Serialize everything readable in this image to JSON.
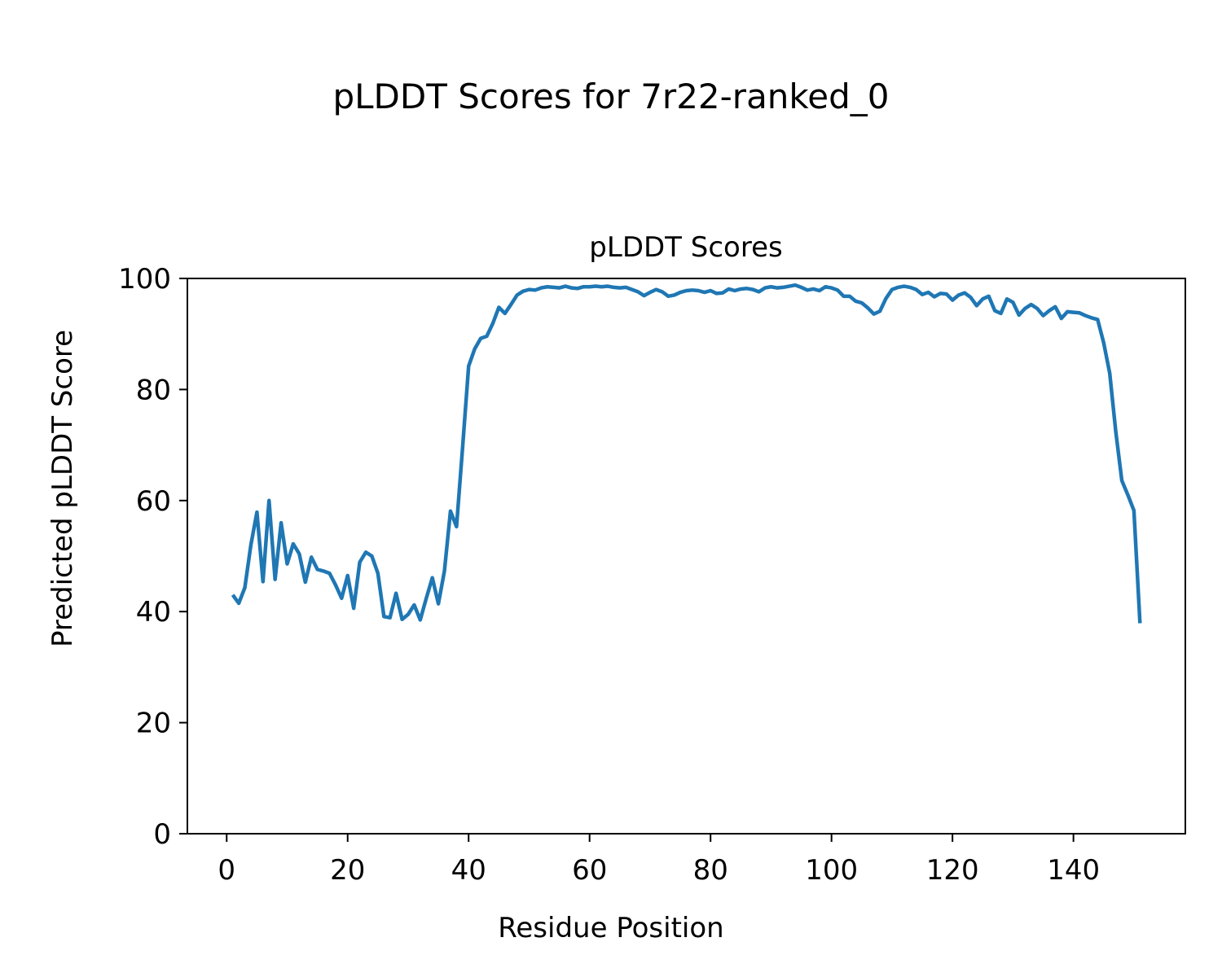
{
  "figure_title": "pLDDT Scores for 7r22-ranked_0",
  "chart_data": {
    "type": "line",
    "title": "pLDDT Scores",
    "xlabel": "Residue Position",
    "ylabel": "Predicted pLDDT Score",
    "xlim": [
      -6.5,
      158.5
    ],
    "ylim": [
      0,
      100
    ],
    "xticks": [
      0,
      20,
      40,
      60,
      80,
      100,
      120,
      140
    ],
    "yticks": [
      0,
      20,
      40,
      60,
      80,
      100
    ],
    "grid": false,
    "legend": "none",
    "series_color": "#1f77b4",
    "x": [
      1,
      2,
      3,
      4,
      5,
      6,
      7,
      8,
      9,
      10,
      11,
      12,
      13,
      14,
      15,
      16,
      17,
      18,
      19,
      20,
      21,
      22,
      23,
      24,
      25,
      26,
      27,
      28,
      29,
      30,
      31,
      32,
      33,
      34,
      35,
      36,
      37,
      38,
      39,
      40,
      41,
      42,
      43,
      44,
      45,
      46,
      47,
      48,
      49,
      50,
      51,
      52,
      53,
      54,
      55,
      56,
      57,
      58,
      59,
      60,
      61,
      62,
      63,
      64,
      65,
      66,
      67,
      68,
      69,
      70,
      71,
      72,
      73,
      74,
      75,
      76,
      77,
      78,
      79,
      80,
      81,
      82,
      83,
      84,
      85,
      86,
      87,
      88,
      89,
      90,
      91,
      92,
      93,
      94,
      95,
      96,
      97,
      98,
      99,
      100,
      101,
      102,
      103,
      104,
      105,
      106,
      107,
      108,
      109,
      110,
      111,
      112,
      113,
      114,
      115,
      116,
      117,
      118,
      119,
      120,
      121,
      122,
      123,
      124,
      125,
      126,
      127,
      128,
      129,
      130,
      131,
      132,
      133,
      134,
      135,
      136,
      137,
      138,
      139,
      140,
      141,
      142,
      143,
      144,
      145,
      146,
      147,
      148,
      149,
      150,
      151
    ],
    "values": [
      43.0,
      41.5,
      44.3,
      52.0,
      57.9,
      45.4,
      60.0,
      45.8,
      56.0,
      48.6,
      52.2,
      50.4,
      45.3,
      49.8,
      47.6,
      47.3,
      46.9,
      44.8,
      42.4,
      46.5,
      40.6,
      48.9,
      50.7,
      50.0,
      46.9,
      39.1,
      38.9,
      43.3,
      38.6,
      39.5,
      41.2,
      38.5,
      42.4,
      46.1,
      41.4,
      47.3,
      58.1,
      55.3,
      69.5,
      84.2,
      87.3,
      89.2,
      89.6,
      91.9,
      94.8,
      93.7,
      95.3,
      97.0,
      97.7,
      98.0,
      97.9,
      98.3,
      98.5,
      98.4,
      98.3,
      98.6,
      98.3,
      98.2,
      98.5,
      98.5,
      98.6,
      98.5,
      98.6,
      98.4,
      98.3,
      98.4,
      98.0,
      97.6,
      96.9,
      97.5,
      98.0,
      97.6,
      96.8,
      97.0,
      97.5,
      97.8,
      97.9,
      97.8,
      97.5,
      97.8,
      97.3,
      97.4,
      98.1,
      97.8,
      98.1,
      98.2,
      98.0,
      97.6,
      98.3,
      98.5,
      98.3,
      98.4,
      98.6,
      98.8,
      98.4,
      97.9,
      98.1,
      97.8,
      98.5,
      98.3,
      97.9,
      96.8,
      96.8,
      95.9,
      95.6,
      94.7,
      93.6,
      94.1,
      96.4,
      98.0,
      98.4,
      98.6,
      98.4,
      98.0,
      97.1,
      97.5,
      96.7,
      97.3,
      97.2,
      96.1,
      97.0,
      97.4,
      96.6,
      95.1,
      96.3,
      96.8,
      94.2,
      93.7,
      96.3,
      95.7,
      93.4,
      94.6,
      95.3,
      94.6,
      93.3,
      94.2,
      94.9,
      92.8,
      94.0,
      93.9,
      93.8,
      93.3,
      92.9,
      92.6,
      88.4,
      82.9,
      72.4,
      63.6,
      61.0,
      58.2,
      37.9
    ]
  }
}
